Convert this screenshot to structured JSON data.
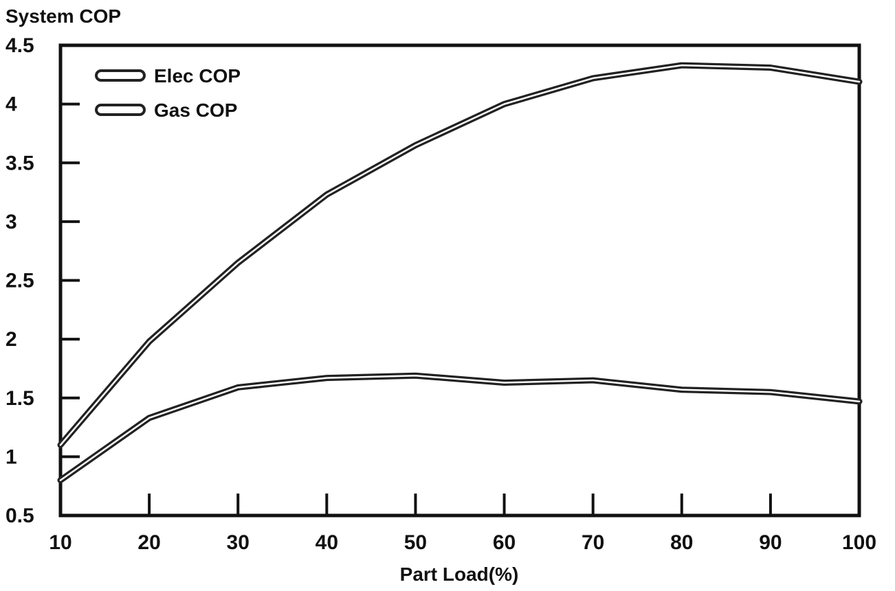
{
  "chart_data": {
    "type": "line",
    "title": "",
    "ylabel": "System COP",
    "xlabel": "Part Load(%)",
    "xlim": [
      10,
      100
    ],
    "ylim": [
      0.5,
      4.5
    ],
    "x_ticks": [
      "10",
      "20",
      "30",
      "40",
      "50",
      "60",
      "70",
      "80",
      "90",
      "100"
    ],
    "y_ticks": [
      "0.5",
      "1",
      "1.5",
      "2",
      "2.5",
      "3",
      "3.5",
      "4",
      "4.5"
    ],
    "grid": false,
    "legend_position": "top-left",
    "x": [
      10,
      20,
      30,
      40,
      50,
      60,
      70,
      80,
      90,
      100
    ],
    "series": [
      {
        "name": "Elec COP",
        "values": [
          1.1,
          1.98,
          2.65,
          3.23,
          3.65,
          4.0,
          4.22,
          4.33,
          4.31,
          4.19
        ]
      },
      {
        "name": "Gas COP",
        "values": [
          0.8,
          1.33,
          1.59,
          1.67,
          1.69,
          1.63,
          1.65,
          1.57,
          1.55,
          1.47
        ]
      }
    ],
    "colors": {
      "line": "#222222",
      "fill": "#ffffff",
      "axis": "#111111"
    }
  }
}
